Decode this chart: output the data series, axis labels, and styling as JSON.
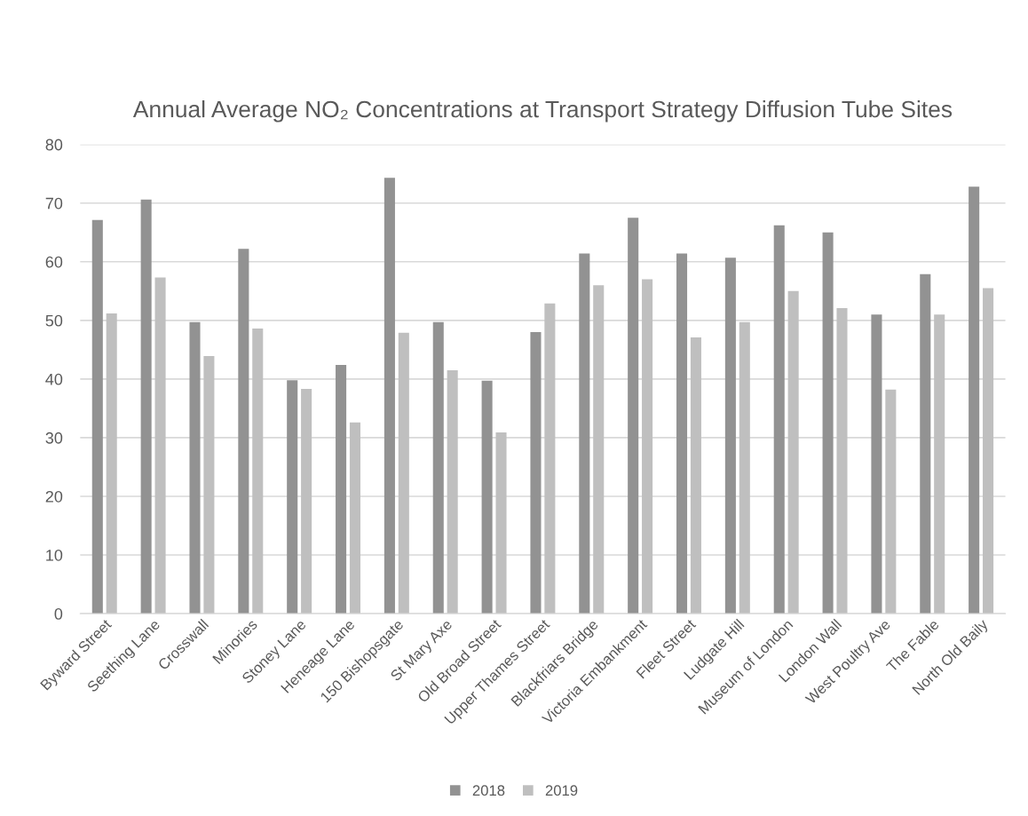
{
  "chart_data": {
    "type": "bar",
    "title": "Annual Average NO₂ Concentrations at Transport Strategy Diffusion Tube Sites",
    "categories": [
      "Byward Street",
      "Seething Lane",
      "Crosswall",
      "Minories",
      "Stoney Lane",
      "Heneage Lane",
      "150 Bishopsgate",
      "St Mary Axe",
      "Old Broad Street",
      "Upper Thames Street",
      "Blackfriars Bridge",
      "Victoria Embankment",
      "Fleet Street",
      "Ludgate Hill",
      "Museum of London",
      "London Wall",
      "West Poultry Ave",
      "The Fable",
      "North Old Baily"
    ],
    "series": [
      {
        "name": "2018",
        "color": "#929292",
        "values": [
          67.1,
          70.6,
          49.7,
          62.2,
          39.8,
          42.4,
          74.3,
          49.7,
          39.7,
          48.0,
          61.4,
          67.5,
          61.4,
          60.7,
          66.2,
          65.0,
          51.0,
          57.9,
          72.8
        ]
      },
      {
        "name": "2019",
        "color": "#bfbfbf",
        "values": [
          51.2,
          57.3,
          43.9,
          48.6,
          38.3,
          32.6,
          47.9,
          41.5,
          30.9,
          52.9,
          56.0,
          57.0,
          47.1,
          49.7,
          55.0,
          52.1,
          38.2,
          51.0,
          55.5
        ]
      }
    ],
    "ylim": [
      0,
      80
    ],
    "yticks": [
      0,
      10,
      20,
      30,
      40,
      50,
      60,
      70,
      80
    ],
    "grid": "y",
    "legend": "bottom"
  }
}
